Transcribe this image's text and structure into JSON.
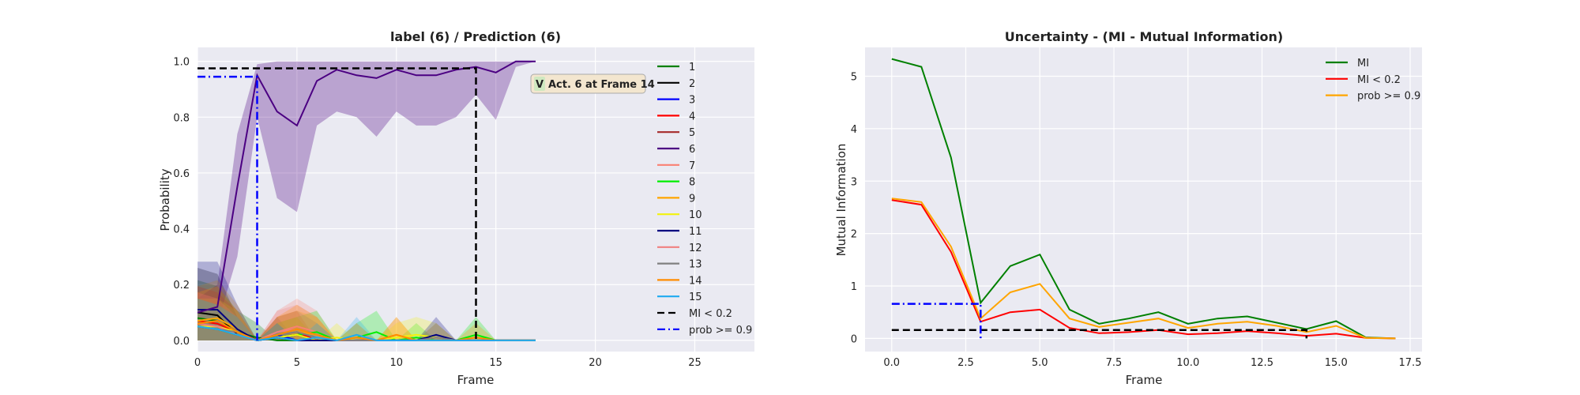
{
  "chart_data": [
    {
      "type": "line",
      "title": "label (6) / Prediction (6)",
      "xlabel": "Frame",
      "ylabel": "Probability",
      "xlim": [
        0,
        28
      ],
      "ylim": [
        -0.04,
        1.05
      ],
      "xticks": [
        "0",
        "5",
        "10",
        "15",
        "20",
        "25"
      ],
      "yticks": [
        "0.0",
        "0.2",
        "0.4",
        "0.6",
        "0.8",
        "1.0"
      ],
      "grid": true,
      "legend_position": "right",
      "annotation": {
        "text": "Act. 6 at Frame 14",
        "badge": "V",
        "x": 17,
        "y": 0.97
      },
      "series": [
        {
          "name": "1",
          "color": "#008000",
          "values": [
            0.08,
            0.07,
            0.03,
            0.01,
            0.0,
            0.0,
            0.0,
            0.0,
            0.0,
            0.0,
            0.0,
            0.0,
            0.0,
            0.0,
            0.0,
            0.0,
            0.0,
            0.0
          ]
        },
        {
          "name": "2",
          "color": "#000000",
          "values": [
            0.1,
            0.09,
            0.02,
            0.0,
            0.01,
            0.02,
            0.0,
            0.0,
            0.0,
            0.0,
            0.0,
            0.0,
            0.0,
            0.0,
            0.0,
            0.0,
            0.0,
            0.0
          ]
        },
        {
          "name": "3",
          "color": "#0000ff",
          "values": [
            0.06,
            0.05,
            0.02,
            0.0,
            0.02,
            0.0,
            0.0,
            0.0,
            0.0,
            0.0,
            0.0,
            0.0,
            0.0,
            0.0,
            0.0,
            0.0,
            0.0,
            0.0
          ]
        },
        {
          "name": "4",
          "color": "#ff0000",
          "values": [
            0.07,
            0.06,
            0.03,
            0.0,
            0.02,
            0.03,
            0.0,
            0.0,
            0.0,
            0.0,
            0.0,
            0.0,
            0.0,
            0.0,
            0.0,
            0.0,
            0.0,
            0.0
          ]
        },
        {
          "name": "5",
          "color": "#a52a2a",
          "values": [
            0.05,
            0.04,
            0.02,
            0.0,
            0.01,
            0.0,
            0.0,
            0.0,
            0.0,
            0.0,
            0.0,
            0.0,
            0.0,
            0.0,
            0.0,
            0.0,
            0.0,
            0.0
          ]
        },
        {
          "name": "6",
          "color": "#4b0082",
          "values": [
            0.1,
            0.12,
            0.55,
            0.95,
            0.82,
            0.77,
            0.93,
            0.97,
            0.95,
            0.94,
            0.97,
            0.95,
            0.95,
            0.97,
            0.98,
            0.96,
            1.0,
            1.0
          ],
          "band_low": [
            0.05,
            0.06,
            0.3,
            0.8,
            0.51,
            0.46,
            0.77,
            0.82,
            0.8,
            0.73,
            0.82,
            0.77,
            0.77,
            0.8,
            0.88,
            0.79,
            0.98,
            1.0
          ],
          "band_high": [
            0.15,
            0.2,
            0.74,
            0.99,
            1.0,
            1.0,
            1.0,
            1.0,
            1.0,
            1.0,
            1.0,
            1.0,
            1.0,
            1.0,
            1.0,
            1.0,
            1.0,
            1.0
          ]
        },
        {
          "name": "7",
          "color": "#fa8072",
          "values": [
            0.06,
            0.05,
            0.02,
            0.0,
            0.03,
            0.05,
            0.03,
            0.0,
            0.0,
            0.0,
            0.0,
            0.0,
            0.0,
            0.0,
            0.0,
            0.0,
            0.0,
            0.0
          ]
        },
        {
          "name": "8",
          "color": "#00ee00",
          "values": [
            0.05,
            0.04,
            0.02,
            0.0,
            0.01,
            0.02,
            0.03,
            0.0,
            0.01,
            0.03,
            0.0,
            0.01,
            0.0,
            0.0,
            0.02,
            0.0,
            0.0,
            0.0
          ]
        },
        {
          "name": "9",
          "color": "#ffa500",
          "values": [
            0.07,
            0.08,
            0.04,
            0.0,
            0.02,
            0.03,
            0.02,
            0.0,
            0.01,
            0.0,
            0.02,
            0.0,
            0.01,
            0.0,
            0.0,
            0.0,
            0.0,
            0.0
          ]
        },
        {
          "name": "10",
          "color": "#f2f20d",
          "values": [
            0.05,
            0.05,
            0.03,
            0.0,
            0.01,
            0.02,
            0.0,
            0.01,
            0.0,
            0.0,
            0.01,
            0.02,
            0.01,
            0.0,
            0.0,
            0.0,
            0.0,
            0.0
          ]
        },
        {
          "name": "11",
          "color": "#000080",
          "values": [
            0.11,
            0.11,
            0.04,
            0.0,
            0.01,
            0.0,
            0.0,
            0.0,
            0.0,
            0.0,
            0.0,
            0.0,
            0.02,
            0.0,
            0.0,
            0.0,
            0.0,
            0.0
          ]
        },
        {
          "name": "12",
          "color": "#f08080",
          "values": [
            0.06,
            0.05,
            0.02,
            0.0,
            0.03,
            0.04,
            0.02,
            0.0,
            0.0,
            0.0,
            0.0,
            0.0,
            0.0,
            0.0,
            0.0,
            0.0,
            0.0,
            0.0
          ]
        },
        {
          "name": "13",
          "color": "#808080",
          "values": [
            0.05,
            0.04,
            0.03,
            0.0,
            0.02,
            0.03,
            0.01,
            0.0,
            0.0,
            0.0,
            0.0,
            0.0,
            0.01,
            0.0,
            0.0,
            0.0,
            0.0,
            0.0
          ]
        },
        {
          "name": "14",
          "color": "#ff8c00",
          "values": [
            0.06,
            0.07,
            0.03,
            0.0,
            0.02,
            0.04,
            0.02,
            0.0,
            0.01,
            0.0,
            0.02,
            0.0,
            0.0,
            0.0,
            0.01,
            0.0,
            0.0,
            0.0
          ]
        },
        {
          "name": "15",
          "color": "#1eaaf0",
          "values": [
            0.05,
            0.04,
            0.02,
            0.0,
            0.01,
            0.0,
            0.01,
            0.0,
            0.02,
            0.0,
            0.0,
            0.0,
            0.0,
            0.0,
            0.0,
            0.0,
            0.0,
            0.0
          ]
        }
      ],
      "reference_lines": [
        {
          "name": "MI < 0.2",
          "color": "#000000",
          "style": "dashed",
          "points": [
            [
              0,
              0.975
            ],
            [
              14,
              0.975
            ],
            [
              14,
              0.0
            ]
          ]
        },
        {
          "name": "prob >= 0.9",
          "color": "#0000ff",
          "style": "dashdot",
          "points": [
            [
              0,
              0.945
            ],
            [
              3,
              0.945
            ],
            [
              3,
              0.0
            ]
          ]
        }
      ]
    },
    {
      "type": "line",
      "title": "Uncertainty - (MI - Mutual Information)",
      "xlabel": "Frame",
      "ylabel": "Mutual Information",
      "xlim": [
        -0.9,
        17.9
      ],
      "ylim": [
        -0.25,
        5.55
      ],
      "xticks": [
        "0.0",
        "2.5",
        "5.0",
        "7.5",
        "10.0",
        "12.5",
        "15.0",
        "17.5"
      ],
      "yticks": [
        "0",
        "1",
        "2",
        "3",
        "4",
        "5"
      ],
      "grid": true,
      "legend_position": "top-right",
      "x": [
        0,
        1,
        2,
        3,
        4,
        5,
        6,
        7,
        8,
        9,
        10,
        11,
        12,
        13,
        14,
        15,
        16,
        17
      ],
      "series": [
        {
          "name": "MI",
          "color": "#008000",
          "values": [
            5.33,
            5.18,
            3.45,
            0.68,
            1.38,
            1.6,
            0.55,
            0.28,
            0.38,
            0.5,
            0.28,
            0.38,
            0.42,
            0.3,
            0.18,
            0.33,
            0.02,
            0.0
          ]
        },
        {
          "name": "MI < 0.2",
          "color": "#ff0000",
          "values": [
            2.64,
            2.55,
            1.65,
            0.32,
            0.5,
            0.55,
            0.2,
            0.1,
            0.12,
            0.16,
            0.08,
            0.1,
            0.14,
            0.1,
            0.05,
            0.09,
            0.01,
            0.0
          ]
        },
        {
          "name": "prob >= 0.9",
          "color": "#ffa500",
          "values": [
            2.67,
            2.6,
            1.75,
            0.38,
            0.88,
            1.04,
            0.38,
            0.22,
            0.3,
            0.38,
            0.2,
            0.28,
            0.32,
            0.24,
            0.12,
            0.24,
            0.01,
            0.0
          ]
        }
      ],
      "reference_lines": [
        {
          "color": "#000000",
          "style": "dashed",
          "points": [
            [
              0,
              0.16
            ],
            [
              14,
              0.16
            ],
            [
              14,
              0.0
            ]
          ]
        },
        {
          "color": "#0000ff",
          "style": "dashdot",
          "points": [
            [
              0,
              0.66
            ],
            [
              3,
              0.66
            ],
            [
              3,
              0.0
            ]
          ]
        }
      ]
    }
  ]
}
